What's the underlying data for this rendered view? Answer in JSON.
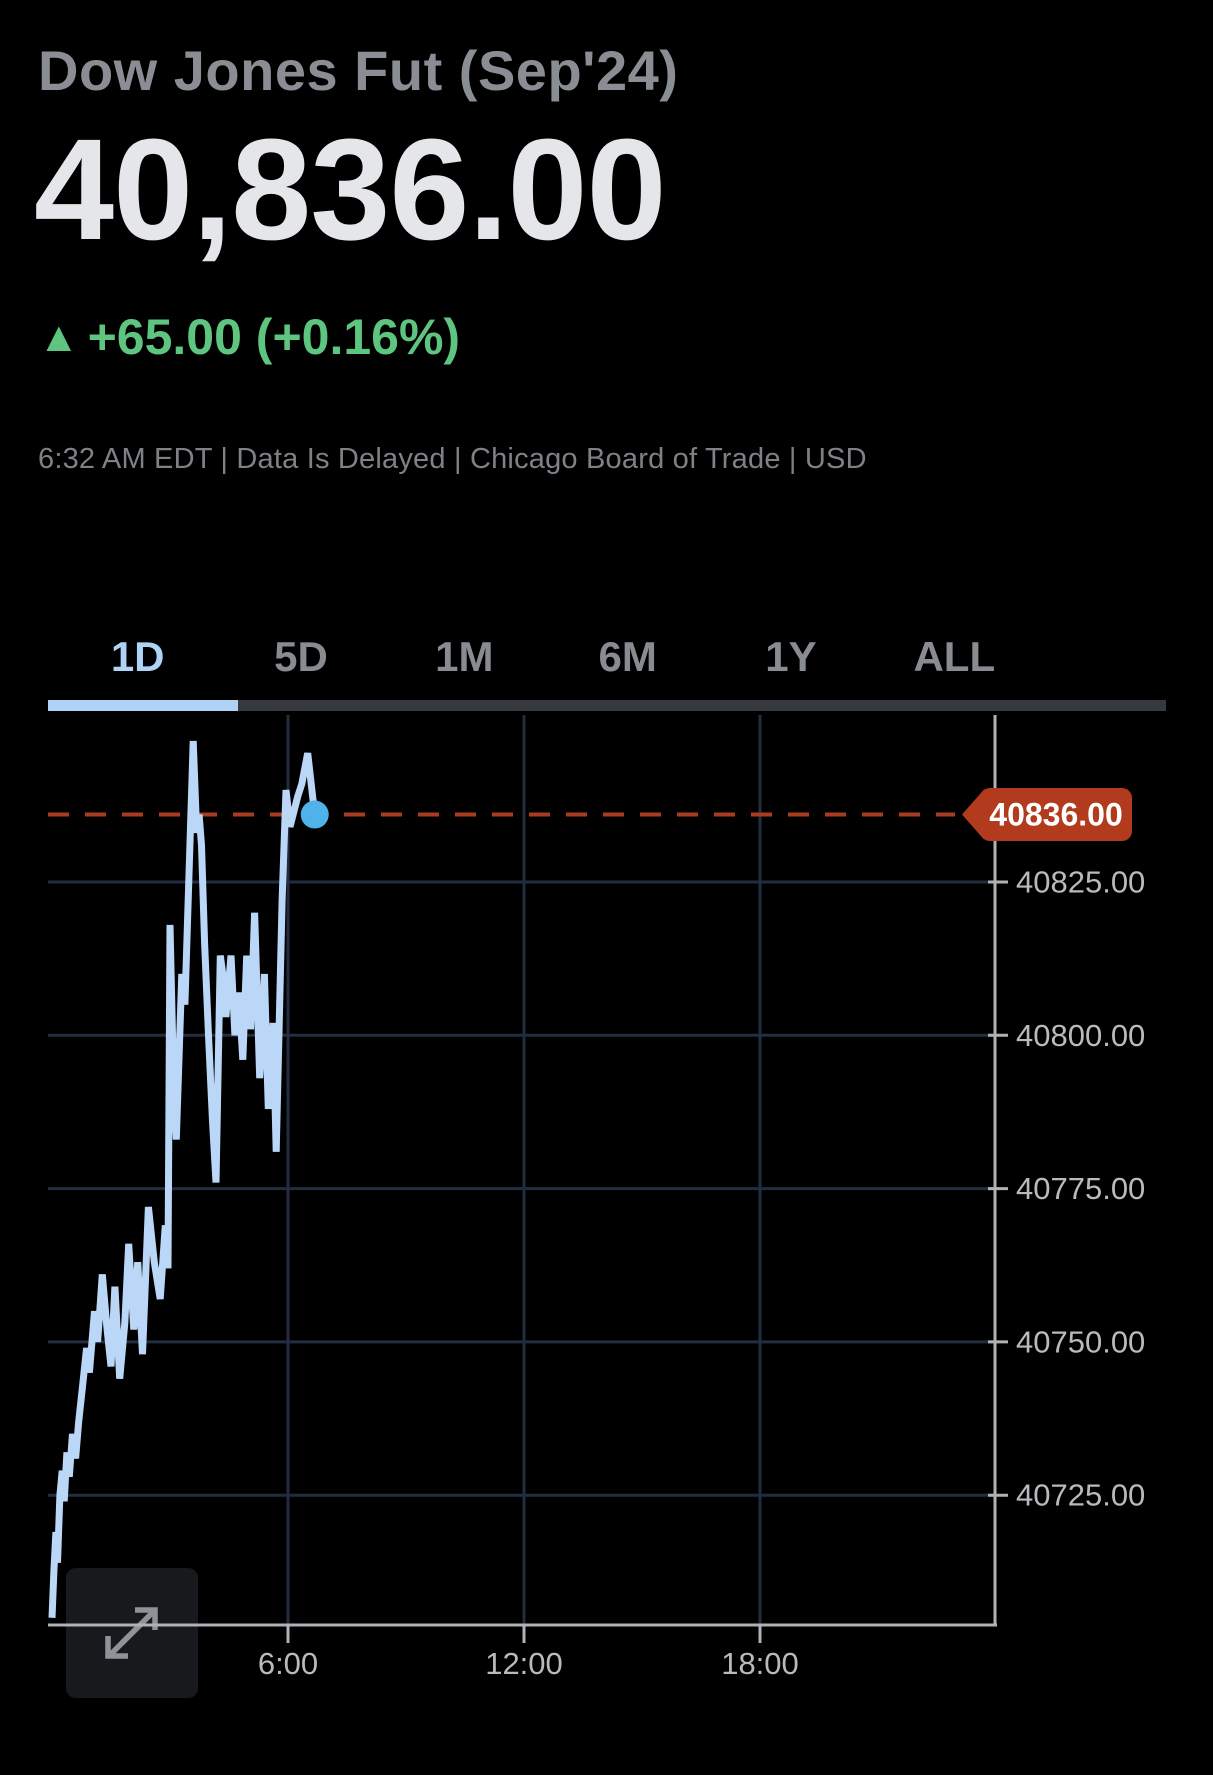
{
  "header": {
    "title": "Dow Jones Fut (Sep'24)",
    "price": "40,836.00",
    "change": {
      "direction_icon": "up-triangle",
      "text": "+65.00 (+0.16%)",
      "color": "#5dc57f"
    },
    "status": "6:32 AM EDT | Data Is Delayed | Chicago Board of Trade | USD"
  },
  "tabs": {
    "items": [
      "1D",
      "5D",
      "1M",
      "6M",
      "1Y",
      "ALL"
    ],
    "active": "1D",
    "active_color": "#aed3f4",
    "inactive_color": "#888b90"
  },
  "icons": {
    "change_direction": "up-triangle-icon",
    "chart_corner": "expand-diagonal-arrows-icon"
  },
  "chart_data": {
    "type": "line",
    "title": "Dow Jones Fut (Sep'24) 1D intraday",
    "xlabel": "",
    "ylabel": "",
    "x_axis": {
      "unit": "hours",
      "range": [
        0,
        24
      ],
      "ticks": [
        {
          "hour": 6,
          "label": "6:00"
        },
        {
          "hour": 12,
          "label": "12:00"
        },
        {
          "hour": 18,
          "label": "18:00"
        }
      ]
    },
    "y_axis": {
      "range": [
        40703,
        40853
      ],
      "ticks": [
        {
          "value": 40825,
          "label": "40825.00"
        },
        {
          "value": 40800,
          "label": "40800.00"
        },
        {
          "value": 40775,
          "label": "40775.00"
        },
        {
          "value": 40750,
          "label": "40750.00"
        },
        {
          "value": 40725,
          "label": "40725.00"
        }
      ]
    },
    "grid": true,
    "legend": false,
    "last_price": {
      "value": 40836,
      "label": "40836.00"
    },
    "series": [
      [
        0.0,
        40705
      ],
      [
        0.05,
        40713
      ],
      [
        0.1,
        40719
      ],
      [
        0.14,
        40714
      ],
      [
        0.2,
        40725
      ],
      [
        0.26,
        40729
      ],
      [
        0.31,
        40724
      ],
      [
        0.38,
        40732
      ],
      [
        0.44,
        40728
      ],
      [
        0.52,
        40735
      ],
      [
        0.6,
        40731
      ],
      [
        0.68,
        40737
      ],
      [
        0.78,
        40743
      ],
      [
        0.88,
        40749
      ],
      [
        0.95,
        40745
      ],
      [
        1.08,
        40755
      ],
      [
        1.16,
        40750
      ],
      [
        1.28,
        40761
      ],
      [
        1.4,
        40752
      ],
      [
        1.5,
        40746
      ],
      [
        1.6,
        40759
      ],
      [
        1.72,
        40744
      ],
      [
        1.85,
        40753
      ],
      [
        1.95,
        40766
      ],
      [
        2.08,
        40752
      ],
      [
        2.18,
        40763
      ],
      [
        2.3,
        40748
      ],
      [
        2.45,
        40772
      ],
      [
        2.6,
        40763
      ],
      [
        2.75,
        40757
      ],
      [
        2.88,
        40769
      ],
      [
        2.95,
        40762
      ],
      [
        3.0,
        40818
      ],
      [
        3.1,
        40790
      ],
      [
        3.16,
        40783
      ],
      [
        3.3,
        40810
      ],
      [
        3.38,
        40805
      ],
      [
        3.59,
        40848
      ],
      [
        3.68,
        40833
      ],
      [
        3.74,
        40836
      ],
      [
        3.8,
        40831
      ],
      [
        3.88,
        40815
      ],
      [
        3.98,
        40800
      ],
      [
        4.08,
        40786
      ],
      [
        4.17,
        40776
      ],
      [
        4.28,
        40813
      ],
      [
        4.34,
        40810
      ],
      [
        4.42,
        40803
      ],
      [
        4.55,
        40813
      ],
      [
        4.65,
        40800
      ],
      [
        4.75,
        40807
      ],
      [
        4.85,
        40796
      ],
      [
        4.95,
        40813
      ],
      [
        5.05,
        40801
      ],
      [
        5.15,
        40820
      ],
      [
        5.28,
        40793
      ],
      [
        5.4,
        40810
      ],
      [
        5.5,
        40788
      ],
      [
        5.62,
        40802
      ],
      [
        5.7,
        40781
      ],
      [
        5.85,
        40822
      ],
      [
        5.95,
        40840
      ],
      [
        6.05,
        40834
      ],
      [
        6.25,
        40839
      ],
      [
        6.35,
        40841
      ],
      [
        6.5,
        40846
      ],
      [
        6.68,
        40836
      ]
    ],
    "colors": {
      "line": "#bad7f7",
      "dot": "#4fb2ea",
      "grid": "#222d40",
      "axis": "#b0b2b5",
      "tick_label": "#b8babd",
      "dashed_line": "#a83b20",
      "price_tag_bg": "#b23b1e",
      "price_tag_text": "#ffffff",
      "icon": "#8f9398",
      "icon_bg": "#17191d"
    }
  }
}
